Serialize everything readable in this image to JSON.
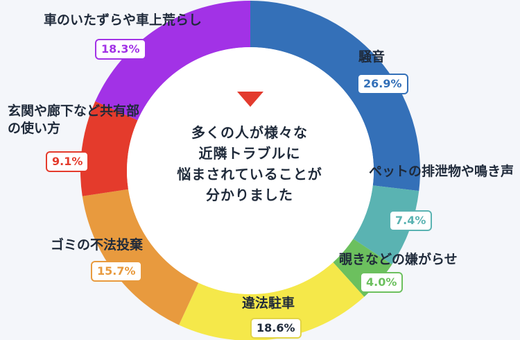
{
  "chart_data": {
    "type": "pie",
    "title": "",
    "center_text": [
      "多くの人が様々な",
      "近隣トラブルに",
      "悩まされていることが",
      "分かりました"
    ],
    "slices": [
      {
        "label": "騒音",
        "display": "26.9%",
        "value": 26.9,
        "color": "#3470b8"
      },
      {
        "label": "ペットの排泄物や鳴き声",
        "display": "7.4%",
        "value": 7.4,
        "color": "#5ab3b2"
      },
      {
        "label": "覗きなどの嫌がらせ",
        "display": "4.0%",
        "value": 4.0,
        "color": "#6cc05e"
      },
      {
        "label": "違法駐車",
        "display": "18.6%",
        "value": 18.6,
        "color": "#f5e84a"
      },
      {
        "label": "ゴミの不法投棄",
        "display": "15.7%",
        "value": 15.7,
        "color": "#e89a3e"
      },
      {
        "label": "玄関や廊下など共有部の使い方",
        "display": "9.1%",
        "value": 9.1,
        "color": "#e43b2c"
      },
      {
        "label": "車のいたずらや車上荒らし",
        "display": "18.3%",
        "value": 18.3,
        "color": "#a232e6"
      }
    ]
  }
}
